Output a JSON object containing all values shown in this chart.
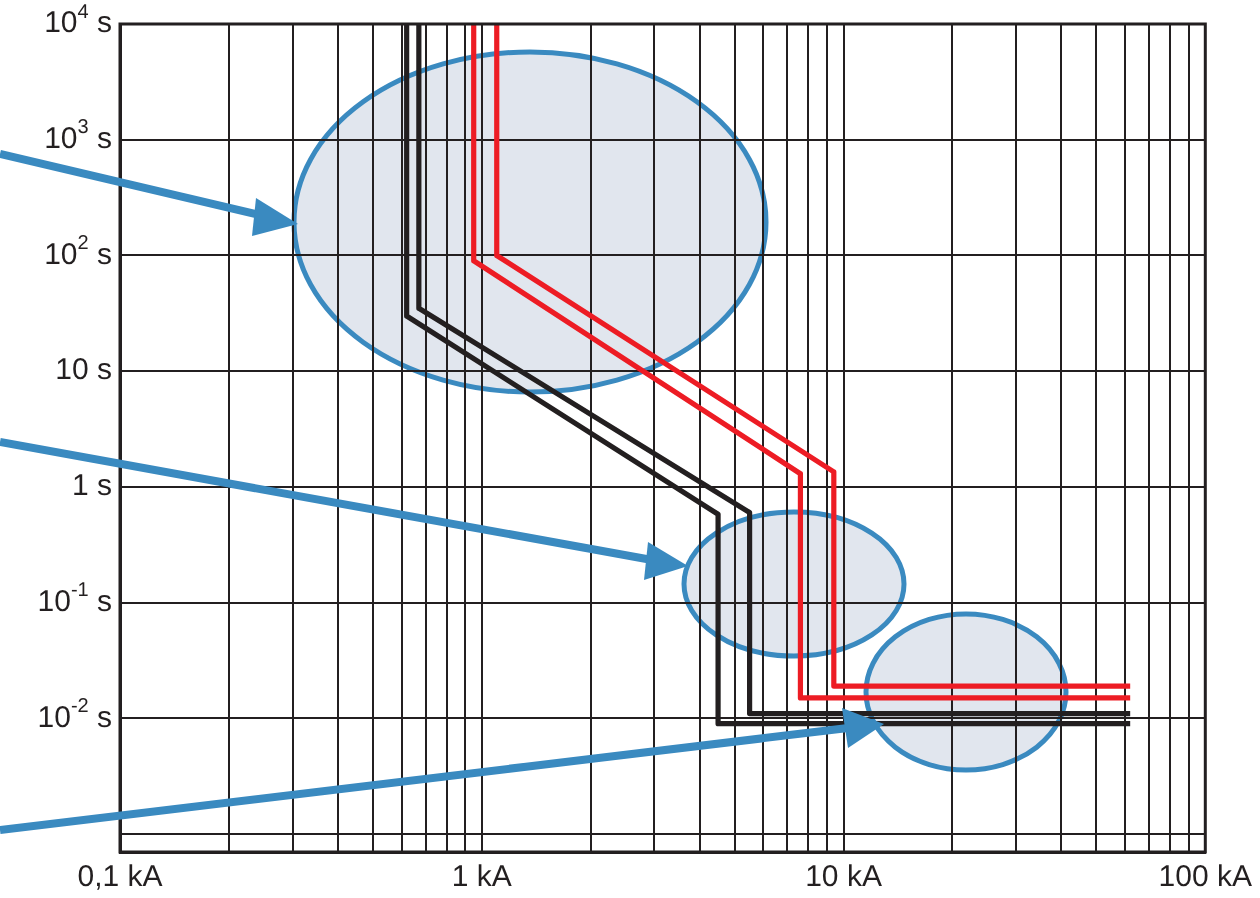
{
  "chart_data": {
    "type": "line",
    "log": "xy",
    "grid": true,
    "legend": false,
    "marker": "none",
    "line_style": "solid",
    "xlim": [
      0.1,
      100
    ],
    "ylim": [
      0.0007,
      10000
    ],
    "xticks": [
      {
        "value": 0.1,
        "label": "0,1 kA"
      },
      {
        "value": 0.2,
        "label": null
      },
      {
        "value": 0.3,
        "label": null
      },
      {
        "value": 0.4,
        "label": null
      },
      {
        "value": 0.5,
        "label": null
      },
      {
        "value": 0.6,
        "label": null
      },
      {
        "value": 0.7,
        "label": null
      },
      {
        "value": 0.8,
        "label": null
      },
      {
        "value": 0.9,
        "label": null
      },
      {
        "value": 1,
        "label": "1 kA"
      },
      {
        "value": 2,
        "label": null
      },
      {
        "value": 3,
        "label": null
      },
      {
        "value": 4,
        "label": null
      },
      {
        "value": 5,
        "label": null
      },
      {
        "value": 6,
        "label": null
      },
      {
        "value": 7,
        "label": null
      },
      {
        "value": 8,
        "label": null
      },
      {
        "value": 9,
        "label": null
      },
      {
        "value": 10,
        "label": "10 kA"
      },
      {
        "value": 20,
        "label": null
      },
      {
        "value": 30,
        "label": null
      },
      {
        "value": 40,
        "label": null
      },
      {
        "value": 50,
        "label": null
      },
      {
        "value": 60,
        "label": null
      },
      {
        "value": 70,
        "label": null
      },
      {
        "value": 80,
        "label": null
      },
      {
        "value": 90,
        "label": null
      },
      {
        "value": 100,
        "label": "100 kA"
      }
    ],
    "yticks": [
      {
        "value": 0.001,
        "label": null
      },
      {
        "value": 0.01,
        "label": "10$^{-2}$ s"
      },
      {
        "value": 0.1,
        "label": "10$^{-1}$ s"
      },
      {
        "value": 1,
        "label": "1 s"
      },
      {
        "value": 10,
        "label": "10 s"
      },
      {
        "value": 100,
        "label": "10$^{2}$ s"
      },
      {
        "value": 1000,
        "label": "10$^{3}$ s"
      },
      {
        "value": 10000,
        "label": "10$^{4}$ s"
      }
    ],
    "series": [
      {
        "color": "#231f20",
        "x": [
          0.62,
          0.62,
          4.5,
          4.5,
          62
        ],
        "values": [
          10000,
          30,
          0.58,
          0.009,
          0.009
        ]
      },
      {
        "color": "#231f20",
        "x": [
          0.67,
          0.67,
          5.5,
          5.5,
          62
        ],
        "values": [
          10000,
          35,
          0.6,
          0.011,
          0.011
        ]
      },
      {
        "color": "#ed1c24",
        "x": [
          0.95,
          0.95,
          7.6,
          7.6,
          62
        ],
        "values": [
          10000,
          90,
          1.3,
          0.015,
          0.015
        ]
      },
      {
        "color": "#ed1c24",
        "x": [
          1.1,
          1.1,
          9.4,
          9.4,
          62
        ],
        "values": [
          10000,
          100,
          1.35,
          0.019,
          0.019
        ]
      }
    ]
  }
}
